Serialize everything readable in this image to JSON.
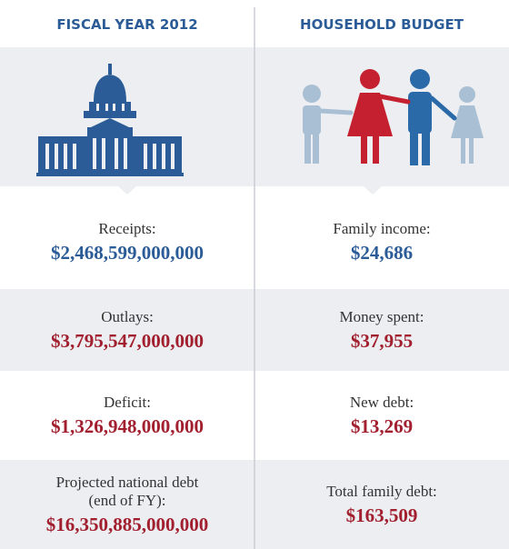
{
  "header": {
    "left_title": "FISCAL YEAR 2012",
    "right_title": "HOUSEHOLD BUDGET"
  },
  "rows": [
    {
      "left_label": "Receipts:",
      "left_value": "$2,468,599,000,000",
      "right_label": "Family income:",
      "right_value": "$24,686"
    },
    {
      "left_label": "Outlays:",
      "left_value": "$3,795,547,000,000",
      "right_label": "Money spent:",
      "right_value": "$37,955"
    },
    {
      "left_label": "Deficit:",
      "left_value": "$1,326,948,000,000",
      "right_label": "New debt:",
      "right_value": "$13,269"
    },
    {
      "left_label": "Projected national debt (end of FY):",
      "left_value": "$16,350,885,000,000",
      "right_label": "Total family debt:",
      "right_value": "$163,509"
    }
  ]
}
